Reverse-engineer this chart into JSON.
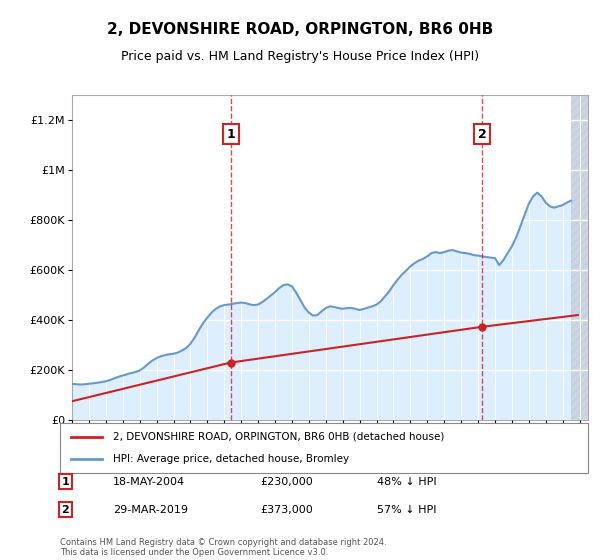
{
  "title": "2, DEVONSHIRE ROAD, ORPINGTON, BR6 0HB",
  "subtitle": "Price paid vs. HM Land Registry's House Price Index (HPI)",
  "xlabel": "",
  "ylabel": "",
  "ylim": [
    0,
    1300000
  ],
  "xlim_start": 1995.0,
  "xlim_end": 2025.5,
  "yticks": [
    0,
    200000,
    400000,
    600000,
    800000,
    1000000,
    1200000
  ],
  "ytick_labels": [
    "£0",
    "£200K",
    "£400K",
    "£600K",
    "£800K",
    "£1M",
    "£1.2M"
  ],
  "background_color": "#ddeeff",
  "hatch_color": "#c0ccdd",
  "grid_color": "#ffffff",
  "hpi_color": "#6699cc",
  "property_color": "#cc2222",
  "sale1": {
    "year": 2004.38,
    "price": 230000,
    "label": "1",
    "date": "18-MAY-2004",
    "pct": "48% ↓ HPI"
  },
  "sale2": {
    "year": 2019.24,
    "price": 373000,
    "label": "2",
    "date": "29-MAR-2019",
    "pct": "57% ↓ HPI"
  },
  "legend_property": "2, DEVONSHIRE ROAD, ORPINGTON, BR6 0HB (detached house)",
  "legend_hpi": "HPI: Average price, detached house, Bromley",
  "footnote": "Contains HM Land Registry data © Crown copyright and database right 2024.\nThis data is licensed under the Open Government Licence v3.0.",
  "hpi_data": {
    "years": [
      1995.0,
      1995.25,
      1995.5,
      1995.75,
      1996.0,
      1996.25,
      1996.5,
      1996.75,
      1997.0,
      1997.25,
      1997.5,
      1997.75,
      1998.0,
      1998.25,
      1998.5,
      1998.75,
      1999.0,
      1999.25,
      1999.5,
      1999.75,
      2000.0,
      2000.25,
      2000.5,
      2000.75,
      2001.0,
      2001.25,
      2001.5,
      2001.75,
      2002.0,
      2002.25,
      2002.5,
      2002.75,
      2003.0,
      2003.25,
      2003.5,
      2003.75,
      2004.0,
      2004.25,
      2004.5,
      2004.75,
      2005.0,
      2005.25,
      2005.5,
      2005.75,
      2006.0,
      2006.25,
      2006.5,
      2006.75,
      2007.0,
      2007.25,
      2007.5,
      2007.75,
      2008.0,
      2008.25,
      2008.5,
      2008.75,
      2009.0,
      2009.25,
      2009.5,
      2009.75,
      2010.0,
      2010.25,
      2010.5,
      2010.75,
      2011.0,
      2011.25,
      2011.5,
      2011.75,
      2012.0,
      2012.25,
      2012.5,
      2012.75,
      2013.0,
      2013.25,
      2013.5,
      2013.75,
      2014.0,
      2014.25,
      2014.5,
      2014.75,
      2015.0,
      2015.25,
      2015.5,
      2015.75,
      2016.0,
      2016.25,
      2016.5,
      2016.75,
      2017.0,
      2017.25,
      2017.5,
      2017.75,
      2018.0,
      2018.25,
      2018.5,
      2018.75,
      2019.0,
      2019.25,
      2019.5,
      2019.75,
      2020.0,
      2020.25,
      2020.5,
      2020.75,
      2021.0,
      2021.25,
      2021.5,
      2021.75,
      2022.0,
      2022.25,
      2022.5,
      2022.75,
      2023.0,
      2023.25,
      2023.5,
      2023.75,
      2024.0,
      2024.25,
      2024.5
    ],
    "values": [
      145000,
      143000,
      142000,
      143000,
      145000,
      147000,
      149000,
      152000,
      155000,
      160000,
      167000,
      173000,
      178000,
      183000,
      188000,
      192000,
      198000,
      210000,
      225000,
      238000,
      248000,
      255000,
      260000,
      263000,
      265000,
      270000,
      278000,
      288000,
      305000,
      330000,
      360000,
      388000,
      410000,
      430000,
      445000,
      455000,
      460000,
      462000,
      465000,
      468000,
      470000,
      468000,
      463000,
      460000,
      462000,
      472000,
      485000,
      498000,
      512000,
      528000,
      540000,
      543000,
      535000,
      510000,
      480000,
      450000,
      430000,
      418000,
      420000,
      435000,
      448000,
      455000,
      452000,
      448000,
      445000,
      448000,
      448000,
      445000,
      440000,
      445000,
      450000,
      455000,
      462000,
      475000,
      495000,
      515000,
      540000,
      562000,
      582000,
      598000,
      615000,
      628000,
      638000,
      645000,
      655000,
      668000,
      672000,
      668000,
      672000,
      678000,
      680000,
      675000,
      670000,
      668000,
      665000,
      660000,
      658000,
      655000,
      652000,
      650000,
      648000,
      620000,
      640000,
      668000,
      695000,
      730000,
      775000,
      820000,
      865000,
      895000,
      910000,
      895000,
      870000,
      855000,
      850000,
      855000,
      860000,
      870000,
      878000
    ]
  },
  "property_data": {
    "years": [
      1995.0,
      2004.38,
      2019.24,
      2024.9
    ],
    "values": [
      75000,
      230000,
      373000,
      420000
    ]
  }
}
